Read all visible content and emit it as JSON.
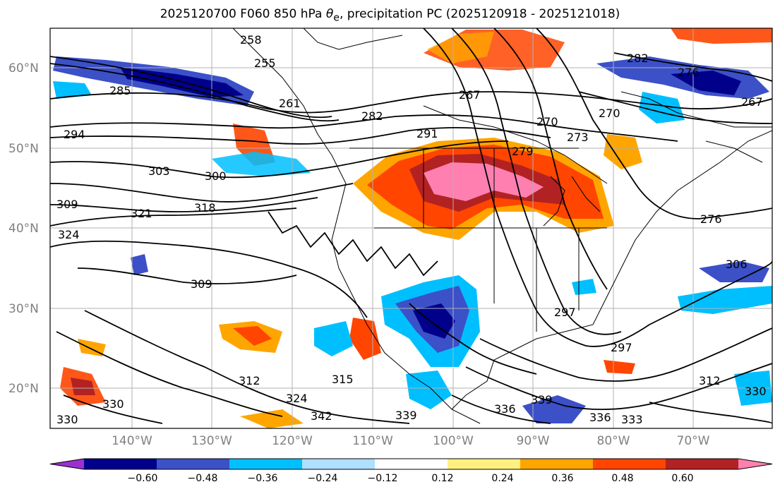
{
  "title_main": "2025120700 F060 850 hPa ",
  "title_var": "θ",
  "title_sub": "e",
  "title_rest": ", precipitation PC (2025120918 - 2025121018)",
  "lat_labels": [
    "60°N",
    "50°N",
    "40°N",
    "30°N",
    "20°N"
  ],
  "lon_labels": [
    "140°W",
    "130°W",
    "120°W",
    "110°W",
    "100°W",
    "90°W",
    "80°W",
    "70°W"
  ],
  "colorbar": {
    "ticks": [
      "−0.60",
      "−0.48",
      "−0.36",
      "−0.24",
      "−0.12",
      "0.12",
      "0.24",
      "0.36",
      "0.48",
      "0.60"
    ],
    "colors": [
      "#9b30d0",
      "#00008b",
      "#3c50c8",
      "#00bfff",
      "#b0e0ff",
      "#ffffff",
      "#fff080",
      "#ffa500",
      "#ff4500",
      "#b22222",
      "#ff80b0"
    ]
  },
  "contour_labels": [
    "258",
    "255",
    "285",
    "261",
    "294",
    "303",
    "300",
    "309",
    "321",
    "318",
    "324",
    "267",
    "282",
    "291",
    "279",
    "270",
    "273",
    "282",
    "276",
    "270",
    "267",
    "276",
    "309",
    "306",
    "297",
    "297",
    "312",
    "324",
    "330",
    "342",
    "339",
    "315",
    "336",
    "339",
    "333",
    "336",
    "330",
    "330",
    "312"
  ]
}
